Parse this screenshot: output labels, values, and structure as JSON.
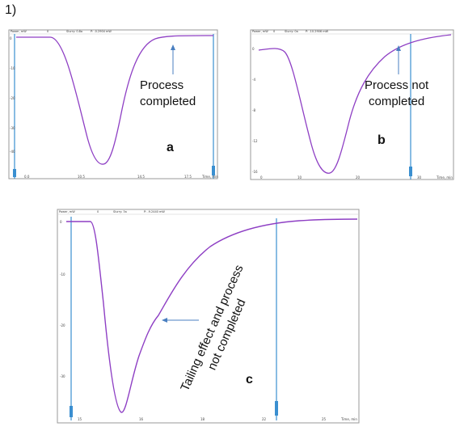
{
  "figure_number": "1)",
  "panels": [
    {
      "id": "a",
      "panel_label": "a",
      "annotation": [
        "Process",
        "completed"
      ],
      "header": [
        "Power, mW",
        "0",
        "Slurry: 0.8a",
        "P: -0.2904 mW"
      ],
      "y_ticks": [
        "0",
        "-10",
        "-20",
        "-30",
        "-40"
      ],
      "x_ticks": [
        "0.0",
        "10.5",
        "14.5",
        "17.5",
        "Time, min"
      ]
    },
    {
      "id": "b",
      "panel_label": "b",
      "annotation": [
        "Process not",
        "completed"
      ],
      "header": [
        "Power, mW",
        "0",
        "Slurry: 0a",
        "P: -10.2906 mW"
      ],
      "y_ticks": [
        "0",
        "-4",
        "-8",
        "-12",
        "-16"
      ],
      "x_ticks": [
        "0",
        "10",
        "20",
        "30",
        "Time, min"
      ]
    },
    {
      "id": "c",
      "panel_label": "c",
      "annotation": [
        "Tailing effect and process",
        "not completed"
      ],
      "header": [
        "Power, mW",
        "0",
        "Slurry: 3a",
        "P: -9.2440 mW"
      ],
      "y_ticks": [
        "0",
        "-10",
        "-20",
        "-30"
      ],
      "x_ticks": [
        "15",
        "16",
        "18",
        "22",
        "25",
        "Time, min"
      ]
    }
  ],
  "colors": {
    "curve": "#8e3fc4",
    "marker": "#3a8fd0",
    "arrow": "#4a7fc0",
    "frame": "#888888"
  }
}
